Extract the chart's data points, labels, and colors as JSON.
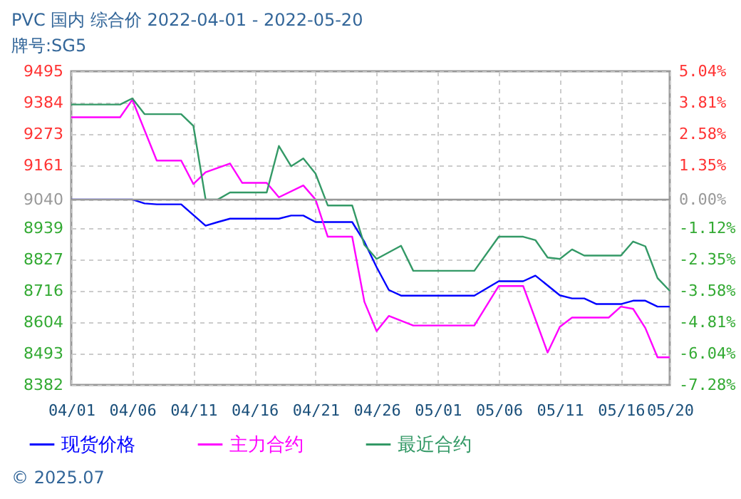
{
  "chart_data": {
    "type": "line",
    "title": "PVC 国内 综合价 2022-04-01 - 2022-05-20",
    "subtitle": "牌号:SG5",
    "annotations": [
      "© 2025.07"
    ],
    "xlim": [
      "2022-04-01",
      "2022-05-20"
    ],
    "xticks": [
      {
        "value": "2022-04-01",
        "label": "04/01"
      },
      {
        "value": "2022-04-06",
        "label": "04/06"
      },
      {
        "value": "2022-04-11",
        "label": "04/11"
      },
      {
        "value": "2022-04-16",
        "label": "04/16"
      },
      {
        "value": "2022-04-21",
        "label": "04/21"
      },
      {
        "value": "2022-04-26",
        "label": "04/26"
      },
      {
        "value": "2022-05-01",
        "label": "05/01"
      },
      {
        "value": "2022-05-06",
        "label": "05/06"
      },
      {
        "value": "2022-05-11",
        "label": "05/11"
      },
      {
        "value": "2022-05-16",
        "label": "05/16"
      },
      {
        "value": "2022-05-20",
        "label": "05/20"
      }
    ],
    "ylim": [
      8382,
      9495
    ],
    "yticks": [
      9495,
      9384,
      9273,
      9161,
      9040,
      8939,
      8827,
      8716,
      8604,
      8493,
      8382
    ],
    "y2lim": [
      -7.28,
      5.04
    ],
    "y2ticks": [
      {
        "value": 5.04,
        "label": "5.04%"
      },
      {
        "value": 3.81,
        "label": "3.81%"
      },
      {
        "value": 2.58,
        "label": "2.58%"
      },
      {
        "value": 1.35,
        "label": "1.35%"
      },
      {
        "value": 0,
        "label": "0.00%"
      },
      {
        "value": -1.12,
        "label": "-1.12%"
      },
      {
        "value": -2.35,
        "label": "-2.35%"
      },
      {
        "value": -3.58,
        "label": "-3.58%"
      },
      {
        "value": -4.81,
        "label": "-4.81%"
      },
      {
        "value": -6.04,
        "label": "-6.04%"
      },
      {
        "value": -7.28,
        "label": "-7.28%"
      }
    ],
    "ref_lines": [
      {
        "axis": "y2",
        "value": 0,
        "color": "#999999"
      }
    ],
    "grid": true,
    "legend": "bottom",
    "line_style": "solid",
    "marker": "none",
    "series": [
      {
        "name": "现货价格",
        "color": "#0000ff",
        "x": [
          "2022-04-01",
          "2022-04-06",
          "2022-04-07",
          "2022-04-08",
          "2022-04-10",
          "2022-04-12",
          "2022-04-13",
          "2022-04-14",
          "2022-04-18",
          "2022-04-19",
          "2022-04-20",
          "2022-04-21",
          "2022-04-24",
          "2022-04-25",
          "2022-04-26",
          "2022-04-27",
          "2022-04-28",
          "2022-05-04",
          "2022-05-06",
          "2022-05-08",
          "2022-05-09",
          "2022-05-11",
          "2022-05-12",
          "2022-05-13",
          "2022-05-14",
          "2022-05-16",
          "2022-05-17",
          "2022-05-18",
          "2022-05-19",
          "2022-05-20"
        ],
        "values": [
          9040,
          9040,
          9026,
          9023,
          9023,
          8947,
          8960,
          8972,
          8972,
          8983,
          8983,
          8960,
          8960,
          8890,
          8800,
          8719,
          8699,
          8699,
          8750,
          8750,
          8770,
          8700,
          8689,
          8689,
          8669,
          8669,
          8681,
          8681,
          8660,
          8660
        ]
      },
      {
        "name": "主力合约",
        "color": "#ff00ff",
        "x": [
          "2022-04-01",
          "2022-04-05",
          "2022-04-06",
          "2022-04-08",
          "2022-04-10",
          "2022-04-11",
          "2022-04-12",
          "2022-04-14",
          "2022-04-15",
          "2022-04-17",
          "2022-04-18",
          "2022-04-20",
          "2022-04-21",
          "2022-04-22",
          "2022-04-24",
          "2022-04-25",
          "2022-04-26",
          "2022-04-27",
          "2022-04-29",
          "2022-05-04",
          "2022-05-06",
          "2022-05-08",
          "2022-05-10",
          "2022-05-11",
          "2022-05-12",
          "2022-05-15",
          "2022-05-16",
          "2022-05-17",
          "2022-05-18",
          "2022-05-19",
          "2022-05-20"
        ],
        "values": [
          9332,
          9332,
          9394,
          9178,
          9178,
          9095,
          9137,
          9168,
          9099,
          9099,
          9048,
          9090,
          9040,
          8908,
          8908,
          8677,
          8573,
          8627,
          8593,
          8593,
          8733,
          8733,
          8497,
          8588,
          8621,
          8621,
          8660,
          8652,
          8584,
          8480,
          8480
        ]
      },
      {
        "name": "最近合约",
        "color": "#339966",
        "x": [
          "2022-04-01",
          "2022-04-05",
          "2022-04-06",
          "2022-04-07",
          "2022-04-10",
          "2022-04-11",
          "2022-04-12",
          "2022-04-13",
          "2022-04-14",
          "2022-04-17",
          "2022-04-18",
          "2022-04-19",
          "2022-04-20",
          "2022-04-21",
          "2022-04-22",
          "2022-04-24",
          "2022-04-25",
          "2022-04-26",
          "2022-04-28",
          "2022-04-29",
          "2022-05-04",
          "2022-05-06",
          "2022-05-08",
          "2022-05-09",
          "2022-05-10",
          "2022-05-11",
          "2022-05-12",
          "2022-05-13",
          "2022-05-16",
          "2022-05-17",
          "2022-05-18",
          "2022-05-19",
          "2022-05-20"
        ],
        "values": [
          9377,
          9377,
          9399,
          9343,
          9343,
          9301,
          9040,
          9040,
          9065,
          9065,
          9230,
          9158,
          9186,
          9132,
          9019,
          9019,
          8879,
          8829,
          8876,
          8787,
          8787,
          8908,
          8908,
          8896,
          8834,
          8829,
          8863,
          8841,
          8841,
          8891,
          8874,
          8761,
          8716
        ]
      }
    ]
  }
}
